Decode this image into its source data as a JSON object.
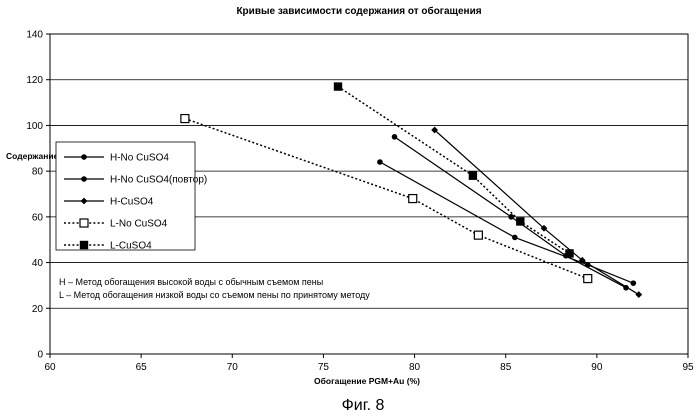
{
  "chart_data": {
    "type": "line",
    "title": "Кривые зависимости содержания от обогащения",
    "xlabel": "Обогащение PGM+Au (%)",
    "ylabel": "Содержание PGM+Au (%)",
    "xlim": [
      60,
      95
    ],
    "ylim": [
      0,
      140
    ],
    "xticks": [
      60,
      65,
      70,
      75,
      80,
      85,
      90,
      95
    ],
    "yticks": [
      0,
      20,
      40,
      60,
      80,
      100,
      120,
      140
    ],
    "grid": "horizontal",
    "legend_position": "left",
    "series": [
      {
        "name": "H-No CuSO4",
        "style": "solid",
        "marker": "circle",
        "x": [
          78.1,
          85.5,
          89.5,
          92.0
        ],
        "y": [
          84,
          51,
          39,
          31
        ]
      },
      {
        "name": "H-No CuSO4(повтор)",
        "style": "solid",
        "marker": "circle",
        "x": [
          78.9,
          85.3,
          88.3,
          91.6
        ],
        "y": [
          95,
          60,
          43,
          29
        ]
      },
      {
        "name": "H-CuSO4",
        "style": "solid",
        "marker": "diamond",
        "x": [
          81.1,
          87.1,
          89.2,
          92.3
        ],
        "y": [
          98,
          55,
          41,
          26
        ]
      },
      {
        "name": "L-No CuSO4",
        "style": "dotted",
        "marker": "open-square",
        "x": [
          67.4,
          79.9,
          83.5,
          89.5
        ],
        "y": [
          103,
          68,
          52,
          33
        ]
      },
      {
        "name": "L-CuSO4",
        "style": "dotted",
        "marker": "filled-square",
        "x": [
          75.8,
          83.2,
          85.8,
          88.5
        ],
        "y": [
          117,
          78,
          58,
          44
        ]
      }
    ],
    "annotations": [
      "H – Метод обогащения высокой воды с обычным съемом пены",
      "L – Метод обогащения низкой воды со съемом пены по принятому методу"
    ]
  },
  "figure_caption": "Фиг. 8"
}
